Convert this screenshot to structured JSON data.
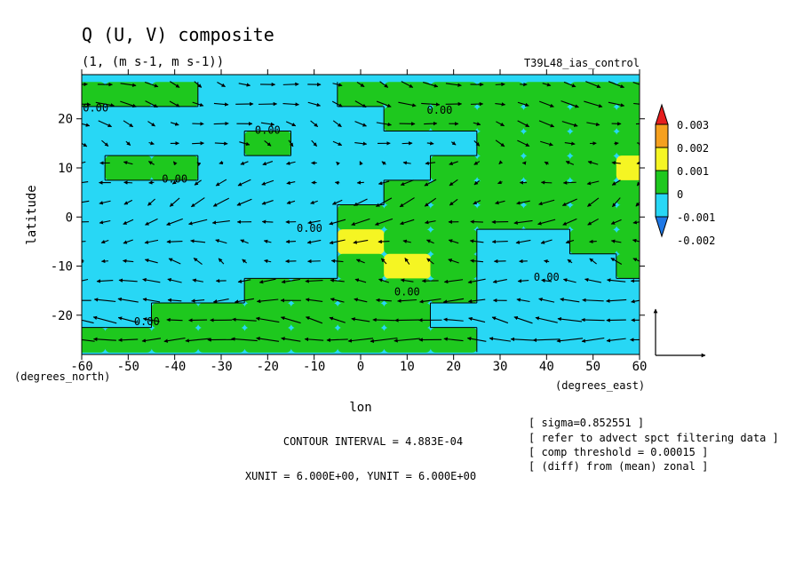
{
  "chart_data": {
    "type": "heatmap",
    "title": "Q (U, V) composite",
    "subtitle": "(1, (m s-1, m s-1))",
    "run_label": "T39L48_ias_control",
    "xlabel": "lon",
    "ylabel": "latitude",
    "x_unit_label": "(degrees_east)",
    "y_unit_label": "(degrees_north)",
    "xlim": [
      -60,
      60
    ],
    "ylim": [
      -28,
      29
    ],
    "x_ticks": [
      -60,
      -50,
      -40,
      -30,
      -20,
      -10,
      0,
      10,
      20,
      30,
      40,
      50,
      60
    ],
    "y_ticks": [
      -20,
      -10,
      0,
      10,
      20
    ],
    "x_tick_labels": [
      "-60",
      "-50",
      "-40",
      "-30",
      "-20",
      "-10",
      "0",
      "10",
      "20",
      "30",
      "40",
      "50",
      "60"
    ],
    "y_tick_labels": [
      "-20",
      "-10",
      "0",
      "10",
      "20"
    ],
    "contour_label": "0.00",
    "colorbar": {
      "levels": [
        -0.002,
        -0.001,
        0,
        0.001,
        0.002,
        0.003
      ],
      "labels": [
        "-0.002",
        "-0.001",
        "0",
        "0.001",
        "0.002",
        "0.003"
      ],
      "colors": [
        "#1e78e6",
        "#28d7f5",
        "#1ec81e",
        "#f5f523",
        "#f5a01e",
        "#e61e1e"
      ]
    },
    "field": {
      "description_values": "approximate Q anomaly sampled every 10 deg lon (cols -60..60) and 5 deg lat (rows 25..-25)",
      "lons": [
        -60,
        -50,
        -40,
        -30,
        -20,
        -10,
        0,
        10,
        20,
        30,
        40,
        50,
        60
      ],
      "lats": [
        25,
        20,
        15,
        10,
        5,
        0,
        -5,
        -10,
        -15,
        -20,
        -25
      ],
      "values": [
        [
          0.0003,
          0.0003,
          0.0002,
          -0.0004,
          -0.0004,
          -0.0003,
          0.0004,
          0.0004,
          0.0004,
          0.0004,
          0.0004,
          0.0003,
          0.0002
        ],
        [
          -0.0003,
          -0.0004,
          -0.0004,
          -0.0005,
          -0.0004,
          -0.0003,
          -0.0004,
          0.0003,
          0.0004,
          0.0003,
          0.0003,
          0.0003,
          0.0002
        ],
        [
          -0.0003,
          -0.0004,
          -0.0005,
          -0.0004,
          0.0003,
          -0.0003,
          -0.0005,
          -0.0004,
          -0.0003,
          0.0003,
          0.0003,
          0.0003,
          0.0003
        ],
        [
          -0.0003,
          0.0004,
          0.0004,
          -0.0004,
          -0.0004,
          -0.0004,
          -0.0004,
          -0.0003,
          0.0003,
          0.0004,
          0.0004,
          0.0004,
          0.0011
        ],
        [
          -0.0003,
          -0.0004,
          -0.0004,
          -0.0005,
          -0.0005,
          -0.0005,
          -0.0003,
          0.0003,
          0.0004,
          0.0004,
          0.0004,
          0.0004,
          0.0003
        ],
        [
          -0.0004,
          -0.0004,
          -0.0004,
          -0.0005,
          -0.0005,
          -0.0005,
          0.0004,
          0.0005,
          0.0005,
          0.0005,
          0.0005,
          0.0005,
          0.0004
        ],
        [
          -0.0004,
          -0.0005,
          -0.0006,
          -0.0005,
          -0.0004,
          -0.0003,
          0.0011,
          0.0006,
          0.0005,
          -0.0003,
          -0.0004,
          0.0004,
          0.0004
        ],
        [
          -0.0004,
          -0.0006,
          -0.0007,
          -0.0006,
          -0.0004,
          -0.0003,
          0.0004,
          0.0011,
          0.0004,
          -0.0004,
          -0.0004,
          -0.0004,
          0.0003
        ],
        [
          -0.0003,
          -0.0012,
          -0.0006,
          -0.0006,
          0.0003,
          0.0003,
          0.0004,
          0.0004,
          0.0003,
          -0.0003,
          -0.0004,
          -0.0004,
          -0.0003
        ],
        [
          -0.0003,
          -0.0004,
          0.0003,
          0.0003,
          0.0004,
          0.0004,
          0.0004,
          0.0004,
          -0.0003,
          -0.0003,
          -0.0004,
          -0.0004,
          -0.0003
        ],
        [
          0.0003,
          0.0003,
          0.0004,
          0.0004,
          0.0004,
          0.0004,
          0.0004,
          0.0003,
          0.0003,
          -0.0003,
          -0.0004,
          -0.0004,
          -0.0003
        ]
      ]
    },
    "vectors": {
      "description_values": "approximate composite wind anomaly (u, v) in m s-1 on a 5 deg lon x 4 deg lat grid (cols -60..60, rows 27..-27)",
      "lons": [
        -60,
        -55,
        -50,
        -45,
        -40,
        -35,
        -30,
        -25,
        -20,
        -15,
        -10,
        -5,
        0,
        5,
        10,
        15,
        20,
        25,
        30,
        35,
        40,
        45,
        50,
        55,
        60
      ],
      "lats": [
        27,
        23,
        19,
        15,
        11,
        7,
        3,
        -1,
        -5,
        -9,
        -13,
        -17,
        -21,
        -25
      ],
      "u_base": [
        4,
        5,
        4,
        3,
        -2,
        -3,
        -4,
        -5,
        -4,
        -3,
        -5,
        -6,
        -7,
        -8
      ],
      "v_base": [
        -1,
        -1,
        -1,
        -1,
        0,
        -1,
        -2,
        -1,
        0,
        1,
        0,
        0,
        1,
        0
      ],
      "reference": {
        "u": 6,
        "v": 6
      }
    },
    "annotations": {
      "contour_interval": "CONTOUR INTERVAL = 4.883E-04",
      "units": "XUNIT = 6.000E+00, YUNIT = 6.000E+00",
      "notes": [
        "[ sigma=0.852551 ]",
        "[ refer to advect spct filtering data ]",
        "[ comp threshold = 0.00015 ]",
        "[ (diff) from (mean) zonal ]"
      ]
    }
  }
}
